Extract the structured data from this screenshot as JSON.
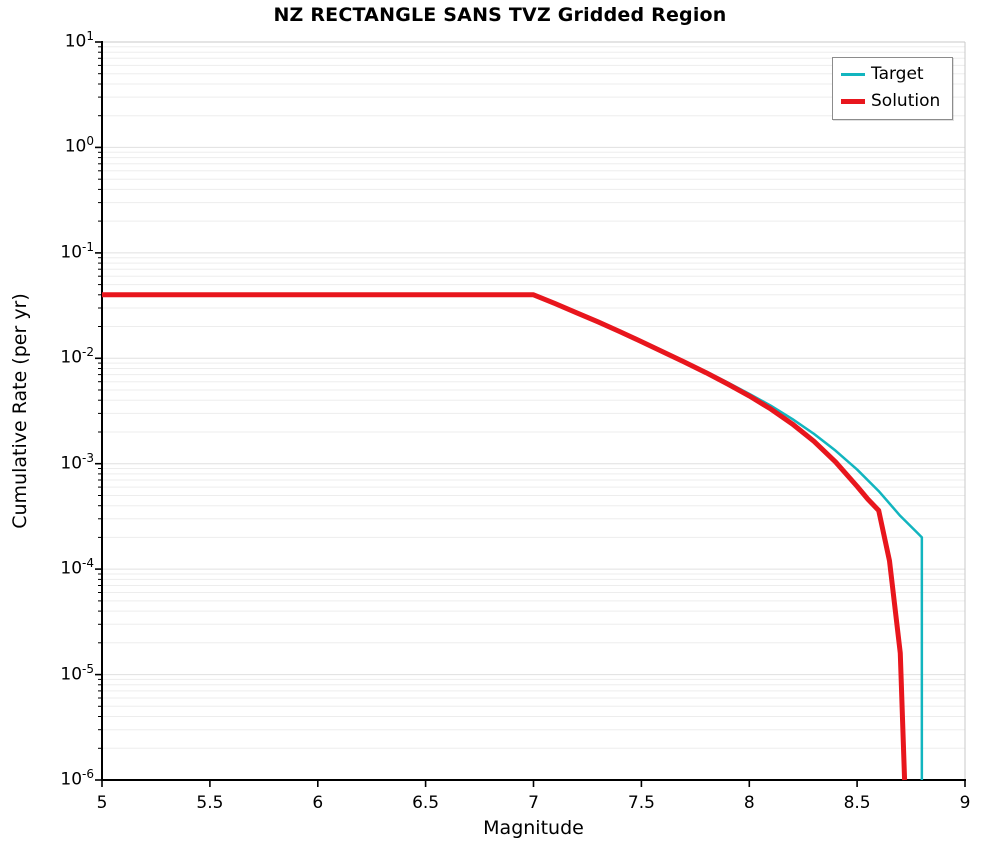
{
  "chart_data": {
    "type": "line",
    "title": "NZ RECTANGLE SANS TVZ Gridded Region",
    "xlabel": "Magnitude",
    "ylabel": "Cumulative Rate (per yr)",
    "xlim": [
      5,
      9
    ],
    "yscale": "log",
    "ylim": [
      1e-06,
      10
    ],
    "ylim_exp": [
      -6,
      1
    ],
    "xticks": [
      5,
      5.5,
      6,
      6.5,
      7,
      7.5,
      8,
      8.5,
      9
    ],
    "ytick_exponents": [
      1,
      0,
      -1,
      -2,
      -3,
      -4,
      -5,
      -6
    ],
    "grid": "horizontal log minor+major gridlines",
    "legend": {
      "position": "top-right",
      "entries": [
        "Target",
        "Solution"
      ]
    },
    "series": [
      {
        "name": "Target",
        "color": "#12b5bf",
        "width": 2.5,
        "points": [
          [
            5.0,
            0.04
          ],
          [
            7.0,
            0.04
          ],
          [
            7.1,
            0.0335
          ],
          [
            7.2,
            0.0276
          ],
          [
            7.3,
            0.0226
          ],
          [
            7.4,
            0.0183
          ],
          [
            7.5,
            0.0147
          ],
          [
            7.6,
            0.0118
          ],
          [
            7.7,
            0.0094
          ],
          [
            7.8,
            0.0075
          ],
          [
            7.9,
            0.0059
          ],
          [
            8.0,
            0.0046
          ],
          [
            8.1,
            0.00355
          ],
          [
            8.2,
            0.00265
          ],
          [
            8.3,
            0.00192
          ],
          [
            8.4,
            0.00133
          ],
          [
            8.5,
            0.00088
          ],
          [
            8.6,
            0.00055
          ],
          [
            8.7,
            0.00032
          ],
          [
            8.78,
            0.00022
          ],
          [
            8.8,
            0.0002
          ],
          [
            8.8,
            1e-06
          ]
        ]
      },
      {
        "name": "Solution",
        "color": "#e8161d",
        "width": 5,
        "points": [
          [
            5.0,
            0.04
          ],
          [
            7.0,
            0.04
          ],
          [
            7.1,
            0.033
          ],
          [
            7.2,
            0.027
          ],
          [
            7.3,
            0.0221
          ],
          [
            7.4,
            0.0179
          ],
          [
            7.5,
            0.0144
          ],
          [
            7.6,
            0.0115
          ],
          [
            7.7,
            0.0092
          ],
          [
            7.8,
            0.0073
          ],
          [
            7.9,
            0.0057
          ],
          [
            8.0,
            0.0044
          ],
          [
            8.1,
            0.0033
          ],
          [
            8.2,
            0.00238
          ],
          [
            8.3,
            0.00163
          ],
          [
            8.4,
            0.00104
          ],
          [
            8.5,
            0.00061
          ],
          [
            8.55,
            0.00046
          ],
          [
            8.6,
            0.00036
          ],
          [
            8.65,
            0.00012
          ],
          [
            8.7,
            1.6e-05
          ],
          [
            8.72,
            1e-06
          ]
        ]
      }
    ]
  }
}
